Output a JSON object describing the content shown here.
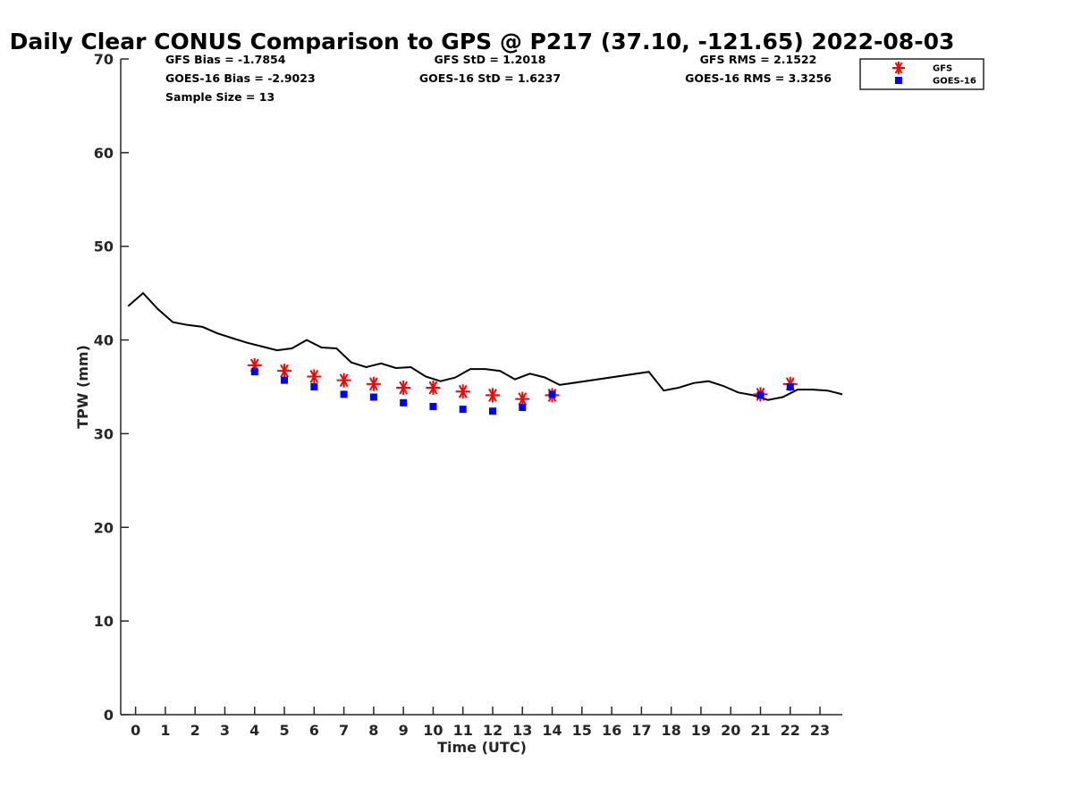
{
  "chart_data": {
    "type": "scatter",
    "title": "Daily Clear CONUS Comparison to GPS @ P217 (37.10, -121.65) 2022-08-03",
    "xlabel": "Time (UTC)",
    "ylabel": "TPW (mm)",
    "xlim": [
      -0.5,
      23.75
    ],
    "ylim": [
      0,
      70
    ],
    "x_ticks": [
      0,
      1,
      2,
      3,
      4,
      5,
      6,
      7,
      8,
      9,
      10,
      11,
      12,
      13,
      14,
      15,
      16,
      17,
      18,
      19,
      20,
      21,
      22,
      23
    ],
    "y_ticks": [
      0,
      10,
      20,
      30,
      40,
      50,
      60,
      70
    ],
    "grid": false,
    "legend_position": "top-right",
    "stats": [
      [
        "GFS Bias = -1.7854",
        "GFS StD = 1.2018",
        "GFS RMS = 2.1522"
      ],
      [
        "GOES-16 Bias = -2.9023",
        "GOES-16 StD = 1.6237",
        "GOES-16 RMS = 3.3256"
      ],
      [
        "Sample Size = 13"
      ]
    ],
    "series": [
      {
        "type": "line",
        "color": "#000000",
        "x": [
          -0.25,
          0.25,
          0.75,
          1.25,
          1.75,
          2.25,
          2.75,
          3.25,
          3.75,
          4.25,
          4.75,
          5.25,
          5.75,
          6.25,
          6.75,
          7.25,
          7.75,
          8.25,
          8.75,
          9.25,
          9.75,
          10.25,
          10.75,
          11.25,
          11.75,
          12.25,
          12.75,
          13.25,
          13.75,
          14.25,
          17.25,
          17.75,
          18.25,
          18.75,
          19.25,
          19.75,
          20.25,
          20.75,
          21.25,
          21.75,
          22.25,
          22.75,
          23.25,
          23.75
        ],
        "y": [
          43.6,
          45.0,
          43.3,
          41.9,
          41.6,
          41.4,
          40.7,
          40.2,
          39.7,
          39.3,
          38.9,
          39.1,
          40.0,
          39.2,
          39.1,
          37.6,
          37.1,
          37.5,
          37.0,
          37.1,
          36.1,
          35.6,
          36.0,
          36.9,
          36.9,
          36.7,
          35.8,
          36.4,
          36.0,
          35.2,
          36.6,
          34.6,
          34.9,
          35.4,
          35.6,
          35.1,
          34.4,
          34.1,
          33.6,
          33.9,
          34.7,
          34.7,
          34.6,
          34.2
        ]
      },
      {
        "name": "GFS",
        "type": "scatter",
        "marker": "asterisk",
        "color": "#ff0000",
        "x": [
          4,
          5,
          6,
          7,
          8,
          9,
          10,
          11,
          12,
          13,
          14,
          21,
          22
        ],
        "y": [
          37.3,
          36.7,
          36.1,
          35.7,
          35.3,
          34.9,
          34.9,
          34.5,
          34.1,
          33.7,
          34.1,
          34.2,
          35.3
        ]
      },
      {
        "name": "GOES-16",
        "type": "scatter",
        "marker": "square",
        "color": "#0000ff",
        "x": [
          4,
          5,
          6,
          7,
          8,
          9,
          10,
          11,
          12,
          13,
          14,
          21,
          22
        ],
        "y": [
          36.6,
          35.7,
          35.0,
          34.2,
          33.9,
          33.3,
          32.9,
          32.6,
          32.4,
          32.8,
          34.2,
          34.1,
          35.0
        ]
      }
    ]
  }
}
